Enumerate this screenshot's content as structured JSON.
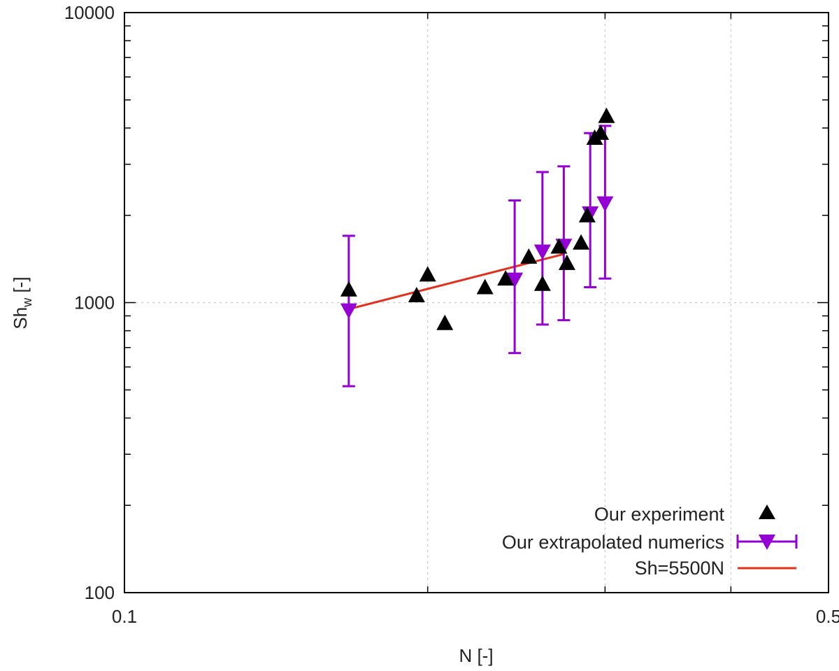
{
  "chart_data": {
    "type": "scatter",
    "xlabel": "N [-]",
    "ylabel_main": "Sh",
    "ylabel_sub": "w",
    "ylabel_rest": " [-]",
    "xscale": "log",
    "yscale": "log",
    "xlim": [
      0.1,
      0.5
    ],
    "ylim": [
      100,
      10000
    ],
    "x_ticks": [
      {
        "value": 0.1,
        "label": "0.1"
      },
      {
        "value": 0.5,
        "label": "0.5"
      }
    ],
    "x_grid_values": [
      0.2,
      0.3,
      0.4
    ],
    "x_minor_ticks": [
      0.2,
      0.3,
      0.4
    ],
    "y_ticks": [
      {
        "value": 100,
        "label": "100"
      },
      {
        "value": 1000,
        "label": "1000"
      },
      {
        "value": 10000,
        "label": "10000"
      }
    ],
    "y_grid_values": [
      1000
    ],
    "y_minor_ticks": [
      200,
      300,
      400,
      500,
      600,
      700,
      800,
      900,
      2000,
      3000,
      4000,
      5000,
      6000,
      7000,
      8000,
      9000
    ],
    "grid": true,
    "legend_position": "bottom-right",
    "colors": {
      "experiment": "#000000",
      "numerics": "#9400d3",
      "fit": "#e0301e"
    },
    "series": [
      {
        "name": "Our experiment",
        "kind": "scatter",
        "marker": "triangle-up",
        "points": [
          {
            "x": 0.167,
            "y": 1110
          },
          {
            "x": 0.195,
            "y": 1060
          },
          {
            "x": 0.2,
            "y": 1250
          },
          {
            "x": 0.208,
            "y": 850
          },
          {
            "x": 0.228,
            "y": 1130
          },
          {
            "x": 0.239,
            "y": 1210
          },
          {
            "x": 0.252,
            "y": 1440
          },
          {
            "x": 0.26,
            "y": 1160
          },
          {
            "x": 0.27,
            "y": 1560
          },
          {
            "x": 0.275,
            "y": 1370
          },
          {
            "x": 0.284,
            "y": 1610
          },
          {
            "x": 0.288,
            "y": 2000
          },
          {
            "x": 0.293,
            "y": 3700
          },
          {
            "x": 0.297,
            "y": 3850
          },
          {
            "x": 0.301,
            "y": 4400
          }
        ]
      },
      {
        "name": "Our extrapolated numerics",
        "kind": "errorbar",
        "marker": "triangle-down",
        "points": [
          {
            "x": 0.167,
            "y": 940,
            "ylow": 515,
            "yhigh": 1700
          },
          {
            "x": 0.244,
            "y": 1200,
            "ylow": 670,
            "yhigh": 2250
          },
          {
            "x": 0.26,
            "y": 1500,
            "ylow": 840,
            "yhigh": 2820
          },
          {
            "x": 0.273,
            "y": 1570,
            "ylow": 870,
            "yhigh": 2950
          },
          {
            "x": 0.29,
            "y": 2030,
            "ylow": 1130,
            "yhigh": 3840
          },
          {
            "x": 0.3,
            "y": 2200,
            "ylow": 1210,
            "yhigh": 4070
          }
        ]
      },
      {
        "name": "Sh=5500N",
        "kind": "line",
        "points": [
          {
            "x": 0.167,
            "y": 950
          },
          {
            "x": 0.273,
            "y": 1470
          }
        ]
      }
    ]
  }
}
